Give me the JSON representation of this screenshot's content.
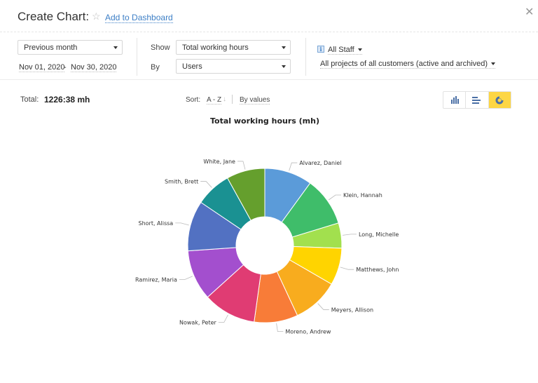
{
  "header": {
    "title": "Create Chart:",
    "star_icon": "star-outline-icon",
    "add_to_dashboard": "Add to Dashboard",
    "close_icon": "close-icon",
    "close_glyph": "✕"
  },
  "filters": {
    "period": {
      "value": "Previous month"
    },
    "date_from": "Nov 01, 2020",
    "date_sep": "-",
    "date_to": "Nov 30, 2020",
    "show_label": "Show",
    "show": {
      "value": "Total working hours"
    },
    "by_label": "By",
    "by": {
      "value": "Users"
    },
    "info_glyph": "i",
    "staff": "All Staff",
    "projects": "All projects of all customers (active and archived)"
  },
  "summary": {
    "total_label": "Total:",
    "total_value": "1226:38 mh",
    "sort_label": "Sort:",
    "sort_az": "A - Z",
    "sort_arrow": "↓",
    "sort_by_values": "By values"
  },
  "chart_types": [
    {
      "name": "column-chart-icon",
      "active": false
    },
    {
      "name": "bar-chart-icon",
      "active": false
    },
    {
      "name": "donut-chart-icon",
      "active": true
    }
  ],
  "colors": {
    "accent_yellow": "#fdd644",
    "link_blue": "#3d7fc6",
    "icon_blue": "#4a6fa5"
  },
  "chart_data": {
    "type": "pie",
    "variant": "donut",
    "title": "Total working hours (mh)",
    "unit": "mh",
    "total": 1226.63,
    "categories": [
      "Alvarez, Daniel",
      "Klein, Hannah",
      "Long, Michelle",
      "Matthews, John",
      "Meyers, Allison",
      "Moreno, Andrew",
      "Nowak, Peter",
      "Ramirez, Maria",
      "Short, Alissa",
      "Smith, Brett",
      "White, Jane"
    ],
    "values": [
      122.7,
      126.1,
      64.7,
      95.4,
      119.2,
      112.4,
      136.3,
      129.5,
      129.5,
      92.0,
      98.8
    ],
    "colors": [
      "#5b9bd9",
      "#3fbd6a",
      "#a2e04e",
      "#ffd400",
      "#f8ac1e",
      "#f87c38",
      "#e03c73",
      "#a34fce",
      "#5271c2",
      "#1a9192",
      "#659f2d"
    ],
    "legend": "none (labels on leader lines)",
    "start_angle_deg": 0,
    "direction": "clockwise"
  }
}
